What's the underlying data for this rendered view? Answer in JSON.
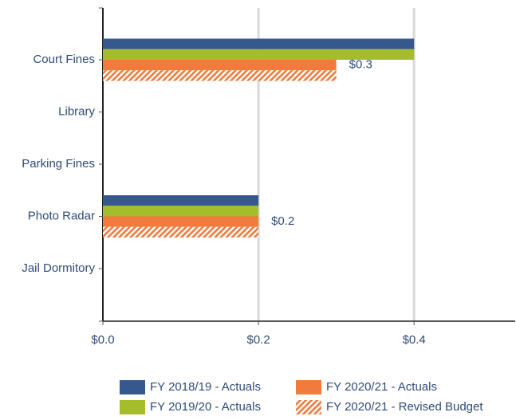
{
  "chart_data": {
    "type": "hbar",
    "categories": [
      "Court Fines",
      "Library",
      "Parking Fines",
      "Photo Radar",
      "Jail Dormitory"
    ],
    "series": [
      {
        "name": "FY 2018/19 - Actuals",
        "color": "#36588c",
        "values": [
          0.4,
          0,
          0,
          0.2,
          0
        ]
      },
      {
        "name": "FY 2019/20 - Actuals",
        "color": "#a5bd2b",
        "values": [
          0.4,
          0,
          0,
          0.2,
          0
        ]
      },
      {
        "name": "FY 2020/21 - Actuals",
        "color": "#f07b3c",
        "values": [
          0.3,
          0,
          0,
          0.2,
          0
        ],
        "value_labels": [
          "$0.3",
          null,
          null,
          "$0.2",
          null
        ]
      },
      {
        "name": "FY 2020/21 - Revised Budget",
        "color": "#f07b3c",
        "pattern": "hatch",
        "values": [
          0.3,
          0,
          0,
          0.2,
          0
        ]
      }
    ],
    "xlim": [
      0,
      0.53
    ],
    "xticks": [
      {
        "value": 0,
        "label": "$0.0"
      },
      {
        "value": 0.2,
        "label": "$0.2"
      },
      {
        "value": 0.4,
        "label": "$0.4"
      }
    ],
    "grid": true,
    "legend": "bottom"
  }
}
